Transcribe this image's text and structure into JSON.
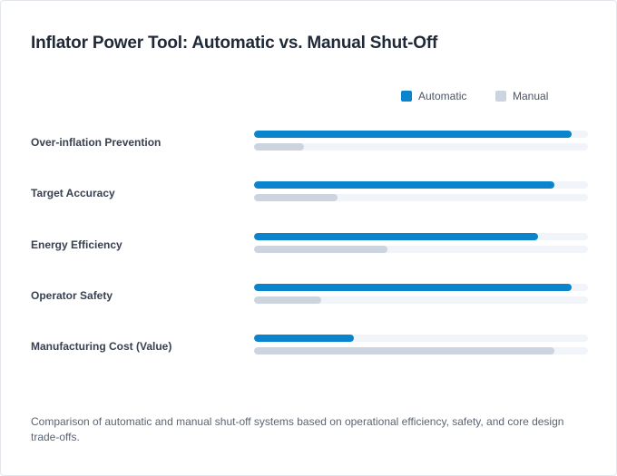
{
  "chart_data": {
    "type": "bar",
    "orientation": "horizontal",
    "title": "Inflator Power Tool: Automatic vs. Manual Shut-Off",
    "categories": [
      "Over-inflation Prevention",
      "Target Accuracy",
      "Energy Efficiency",
      "Operator Safety",
      "Manufacturing Cost (Value)"
    ],
    "series": [
      {
        "name": "Automatic",
        "color": "#0a84cc",
        "values": [
          95,
          90,
          85,
          95,
          30
        ]
      },
      {
        "name": "Manual",
        "color": "#ccd4df",
        "values": [
          15,
          25,
          40,
          20,
          90
        ]
      }
    ],
    "xlim": [
      0,
      100
    ],
    "grid": false,
    "legend_position": "top-right",
    "caption": "Comparison of automatic and manual shut-off systems based on operational efficiency, safety, and core design trade-offs."
  }
}
